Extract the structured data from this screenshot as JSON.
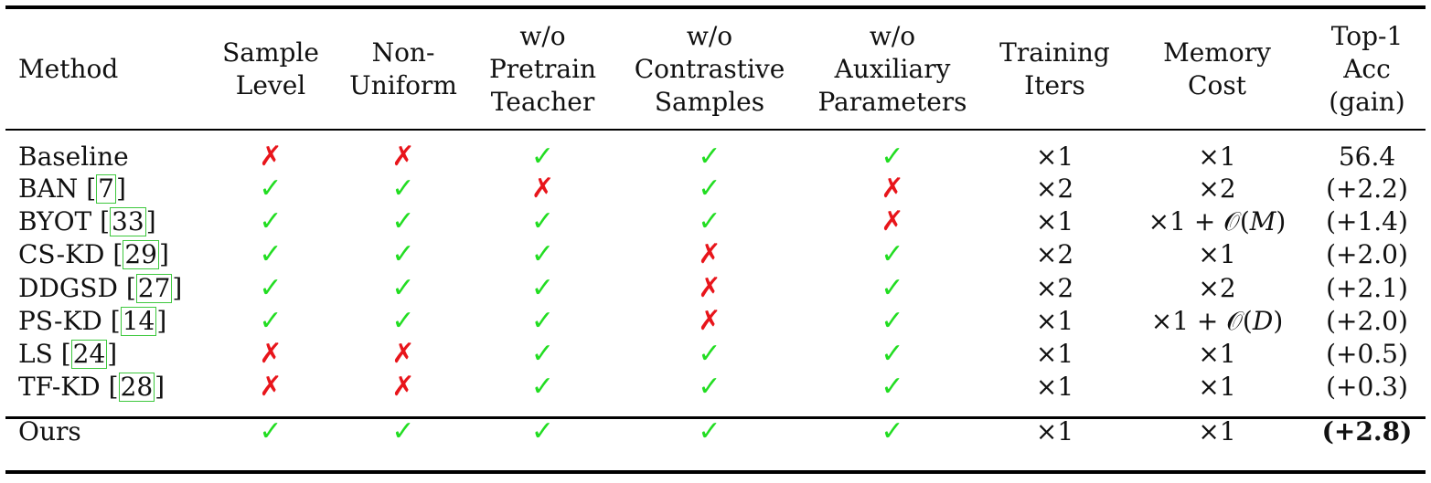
{
  "columns": [
    {
      "key": "method",
      "lines": [
        "Method"
      ]
    },
    {
      "key": "sample_level",
      "lines": [
        "Sample",
        "Level"
      ]
    },
    {
      "key": "non_uniform",
      "lines": [
        "Non-",
        "Uniform"
      ]
    },
    {
      "key": "wo_pretrain_teacher",
      "lines": [
        "w/o",
        "Pretrain",
        "Teacher"
      ]
    },
    {
      "key": "wo_contrastive_samples",
      "lines": [
        "w/o",
        "Contrastive",
        "Samples"
      ]
    },
    {
      "key": "wo_auxiliary_parameters",
      "lines": [
        "w/o",
        "Auxiliary",
        "Parameters"
      ]
    },
    {
      "key": "training_iters",
      "lines": [
        "Training",
        "Iters"
      ]
    },
    {
      "key": "memory_cost",
      "lines": [
        "Memory",
        "Cost"
      ]
    },
    {
      "key": "top1_acc",
      "lines": [
        "Top-1",
        "Acc",
        "(gain)"
      ]
    }
  ],
  "marks": {
    "yes": "✓",
    "no": "✗"
  },
  "colors": {
    "yes": "#22dd22",
    "no": "#e8151b",
    "ref_box": "#3ec83e"
  },
  "rows": [
    {
      "method": "Baseline",
      "ref": "",
      "flags": [
        "no",
        "no",
        "yes",
        "yes",
        "yes"
      ],
      "iters": "×1",
      "memory": "×1",
      "acc": "56.4"
    },
    {
      "method": "BAN",
      "ref": "7",
      "flags": [
        "yes",
        "yes",
        "no",
        "yes",
        "no"
      ],
      "iters": "×2",
      "memory": "×2",
      "acc": "(+2.2)"
    },
    {
      "method": "BYOT",
      "ref": "33",
      "flags": [
        "yes",
        "yes",
        "yes",
        "yes",
        "no"
      ],
      "iters": "×1",
      "memory": "×1 + 𝒪(M)",
      "acc": "(+1.4)"
    },
    {
      "method": "CS-KD",
      "ref": "29",
      "flags": [
        "yes",
        "yes",
        "yes",
        "no",
        "yes"
      ],
      "iters": "×2",
      "memory": "×1",
      "acc": "(+2.0)"
    },
    {
      "method": "DDGSD",
      "ref": "27",
      "flags": [
        "yes",
        "yes",
        "yes",
        "no",
        "yes"
      ],
      "iters": "×2",
      "memory": "×2",
      "acc": "(+2.1)"
    },
    {
      "method": "PS-KD",
      "ref": "14",
      "flags": [
        "yes",
        "yes",
        "yes",
        "no",
        "yes"
      ],
      "iters": "×1",
      "memory": "×1 + 𝒪(D)",
      "acc": "(+2.0)"
    },
    {
      "method": "LS",
      "ref": "24",
      "flags": [
        "no",
        "no",
        "yes",
        "yes",
        "yes"
      ],
      "iters": "×1",
      "memory": "×1",
      "acc": "(+0.5)"
    },
    {
      "method": "TF-KD",
      "ref": "28",
      "flags": [
        "no",
        "no",
        "yes",
        "yes",
        "yes"
      ],
      "iters": "×1",
      "memory": "×1",
      "acc": "(+0.3)"
    }
  ],
  "ours": {
    "method": "Ours",
    "flags": [
      "yes",
      "yes",
      "yes",
      "yes",
      "yes"
    ],
    "iters": "×1",
    "memory": "×1",
    "acc": "(+2.8)"
  }
}
